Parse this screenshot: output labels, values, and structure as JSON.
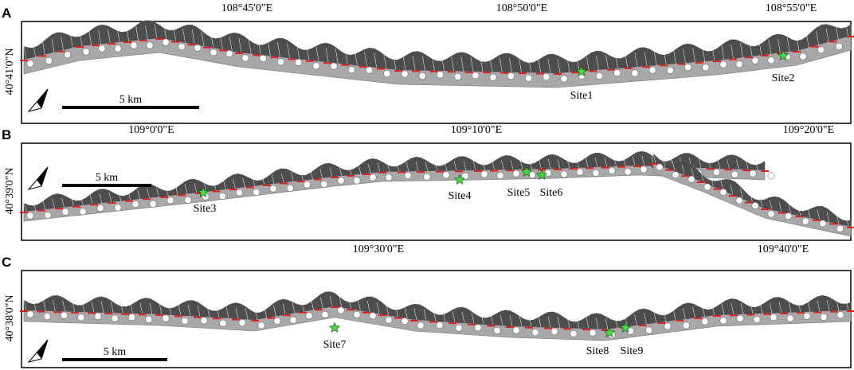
{
  "panels": [
    {
      "label": "A",
      "top_ticks": [
        "108°45'0\"E",
        "108°50'0\"E",
        "108°55'0\"E"
      ],
      "left_tick": "40°41'0\"N",
      "scale": "5 km",
      "sites": [
        {
          "label": "Site1"
        },
        {
          "label": "Site2"
        }
      ]
    },
    {
      "label": "B",
      "top_ticks": [
        "109°0'0\"E",
        "109°10'0\"E",
        "109°20'0\"E"
      ],
      "left_tick": "40°39'0\"N",
      "scale": "5 km",
      "sites": [
        {
          "label": "Site3"
        },
        {
          "label": "Site4"
        },
        {
          "label": "Site5"
        },
        {
          "label": "Site6"
        }
      ]
    },
    {
      "label": "C",
      "top_ticks": [
        "109°30'0\"E",
        "109°40'0\"E"
      ],
      "left_tick": "40°38'0\"N",
      "scale": "5 km",
      "sites": [
        {
          "label": "Site7"
        },
        {
          "label": "Site8"
        },
        {
          "label": "Site9"
        }
      ]
    }
  ]
}
